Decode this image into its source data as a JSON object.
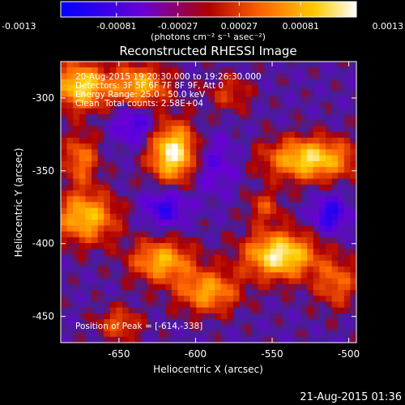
{
  "colorbar": {
    "tick_labels": [
      "-0.0013",
      "-0.00081",
      "-0.00027",
      "0.00027",
      "0.00081",
      "0.0013"
    ],
    "tick_values": [
      -0.0013,
      -0.00081,
      -0.00027,
      0.00027,
      0.00081,
      0.0013
    ],
    "min": -0.0013,
    "max": 0.0013,
    "unit_label": "(photons cm⁻² s⁻¹ asec⁻²)",
    "colors": [
      "#0000ff",
      "#6a00d6",
      "#ae0000",
      "#ff6600",
      "#ffcc00",
      "#ffffff"
    ]
  },
  "plot": {
    "title": "Reconstructed RHESSI Image",
    "xlabel": "Heliocentric X (arcsec)",
    "ylabel": "Heliocentric Y (arcsec)",
    "xlim": [
      -688,
      -495
    ],
    "ylim": [
      -468,
      -275
    ],
    "x_ticks": [
      -650,
      -600,
      -550,
      -500
    ],
    "y_ticks": [
      -300,
      -350,
      -400,
      -450
    ],
    "x_tick_labels": [
      "-650",
      "-600",
      "-550",
      "-500"
    ],
    "y_tick_labels": [
      "-300",
      "-350",
      "-400",
      "-450"
    ]
  },
  "annotation": {
    "time_range": "20-Aug-2015 19:20:30.000 to 19:26:30.000",
    "detectors": "Detectors: 3F 5F 6F 7F 8F 9F, Att 0",
    "energy_range": "Energy Range: 25.0 - 50.0 keV",
    "algorithm": "Clean",
    "total_counts": "Total counts: 2.58E+04",
    "peak": "Position of Peak = [-614,-338]"
  },
  "timestamp": "21-Aug-2015 01:36",
  "image_sources": [
    {
      "x": -614,
      "y": -338,
      "sx": 11,
      "sy": 14,
      "amp": 1.0
    },
    {
      "x": -675,
      "y": -292,
      "sx": 12,
      "sy": 11,
      "amp": 0.85
    },
    {
      "x": -637,
      "y": -292,
      "sx": 13,
      "sy": 10,
      "amp": 0.7
    },
    {
      "x": -675,
      "y": -342,
      "sx": 8,
      "sy": 12,
      "amp": 0.5
    },
    {
      "x": -672,
      "y": -382,
      "sx": 14,
      "sy": 12,
      "amp": 0.75
    },
    {
      "x": -525,
      "y": -342,
      "sx": 20,
      "sy": 10,
      "amp": 0.85
    },
    {
      "x": -545,
      "y": -408,
      "sx": 16,
      "sy": 11,
      "amp": 0.95
    },
    {
      "x": -622,
      "y": -412,
      "sx": 14,
      "sy": 10,
      "amp": 0.7
    },
    {
      "x": -592,
      "y": -433,
      "sx": 14,
      "sy": 10,
      "amp": 0.65
    },
    {
      "x": -650,
      "y": -455,
      "sx": 10,
      "sy": 8,
      "amp": 0.4
    },
    {
      "x": -508,
      "y": -427,
      "sx": 10,
      "sy": 12,
      "amp": 0.45
    },
    {
      "x": -578,
      "y": -297,
      "sx": 10,
      "sy": 9,
      "amp": 0.3
    },
    {
      "x": -555,
      "y": -375,
      "sx": 8,
      "sy": 8,
      "amp": 0.35
    },
    {
      "x": -512,
      "y": -380,
      "sx": 8,
      "sy": 9,
      "amp": -0.5
    },
    {
      "x": -620,
      "y": -375,
      "sx": 10,
      "sy": 9,
      "amp": -0.45
    },
    {
      "x": -640,
      "y": -318,
      "sx": 9,
      "sy": 10,
      "amp": -0.4
    },
    {
      "x": -590,
      "y": -345,
      "sx": 12,
      "sy": 14,
      "amp": -0.3
    }
  ]
}
